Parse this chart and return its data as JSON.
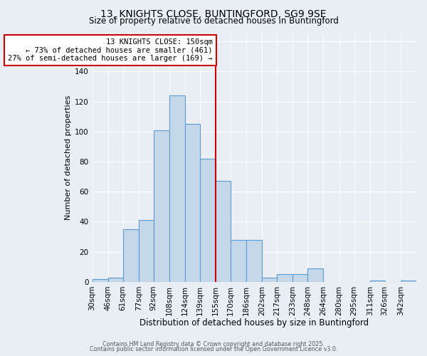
{
  "title": "13, KNIGHTS CLOSE, BUNTINGFORD, SG9 9SE",
  "subtitle": "Size of property relative to detached houses in Buntingford",
  "xlabel": "Distribution of detached houses by size in Buntingford",
  "ylabel": "Number of detached properties",
  "bin_labels": [
    "30sqm",
    "46sqm",
    "61sqm",
    "77sqm",
    "92sqm",
    "108sqm",
    "124sqm",
    "139sqm",
    "155sqm",
    "170sqm",
    "186sqm",
    "202sqm",
    "217sqm",
    "233sqm",
    "248sqm",
    "264sqm",
    "280sqm",
    "295sqm",
    "311sqm",
    "326sqm",
    "342sqm"
  ],
  "bar_values": [
    2,
    3,
    35,
    41,
    101,
    124,
    105,
    82,
    67,
    28,
    28,
    3,
    5,
    5,
    9,
    0,
    0,
    0,
    1,
    0,
    1
  ],
  "bar_color": "#c5d8ea",
  "bar_edgecolor": "#5b9bd5",
  "vline_color": "#cc0000",
  "annotation_title": "13 KNIGHTS CLOSE: 150sqm",
  "annotation_line1": "← 73% of detached houses are smaller (461)",
  "annotation_line2": "27% of semi-detached houses are larger (169) →",
  "annotation_box_edgecolor": "#cc0000",
  "ylim": [
    0,
    165
  ],
  "bin_edges": [
    30,
    46,
    61,
    77,
    92,
    108,
    124,
    139,
    155,
    170,
    186,
    202,
    217,
    233,
    248,
    264,
    280,
    295,
    311,
    326,
    342,
    358
  ],
  "footer_line1": "Contains HM Land Registry data © Crown copyright and database right 2025.",
  "footer_line2": "Contains public sector information licensed under the Open Government Licence v3.0.",
  "background_color": "#e8eef4",
  "grid_color": "#ffffff",
  "title_fontsize": 10,
  "subtitle_fontsize": 8.5,
  "xlabel_fontsize": 8.5,
  "ylabel_fontsize": 8
}
